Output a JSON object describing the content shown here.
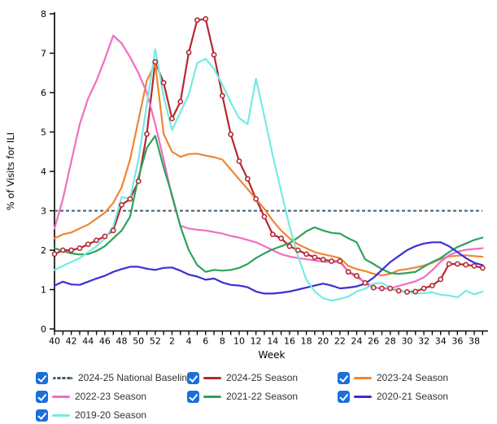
{
  "chart_data": {
    "type": "line",
    "title": "",
    "x_axis": {
      "label": "Week",
      "weeks": [
        40,
        41,
        42,
        43,
        44,
        45,
        46,
        47,
        48,
        49,
        50,
        51,
        52,
        1,
        2,
        3,
        4,
        5,
        6,
        7,
        8,
        9,
        10,
        11,
        12,
        13,
        14,
        15,
        16,
        17,
        18,
        19,
        20,
        21,
        22,
        23,
        24,
        25,
        26,
        27,
        28,
        29,
        30,
        31,
        32,
        33,
        34,
        35,
        36,
        37,
        38,
        39
      ],
      "labeled_ticks": [
        40,
        42,
        44,
        46,
        48,
        50,
        52,
        2,
        4,
        6,
        8,
        10,
        12,
        14,
        16,
        18,
        20,
        22,
        24,
        26,
        28,
        30,
        32,
        34,
        36,
        38
      ]
    },
    "y_axis": {
      "label": "% of Visits for ILI",
      "min": 0,
      "max": 8,
      "ticks": [
        0,
        1,
        2,
        3,
        4,
        5,
        6,
        7,
        8
      ]
    },
    "baseline": {
      "name": "2024-25 National Baseline",
      "value": 3.0,
      "color": "#3E5A6E",
      "style": "dashed"
    },
    "series": [
      {
        "name": "2024-25 Season",
        "color": "#B52830",
        "marker": true,
        "values": [
          1.9,
          2.0,
          2.0,
          2.05,
          2.15,
          2.25,
          2.35,
          2.5,
          3.15,
          3.3,
          3.75,
          4.95,
          6.78,
          6.25,
          5.34,
          5.77,
          7.02,
          7.84,
          7.87,
          6.96,
          5.92,
          4.94,
          4.26,
          3.81,
          3.3,
          2.85,
          2.4,
          2.3,
          2.1,
          2.0,
          1.9,
          1.82,
          1.76,
          1.72,
          1.72,
          1.45,
          1.35,
          1.17,
          1.05,
          1.03,
          1.03,
          0.97,
          0.94,
          0.95,
          1.03,
          1.1,
          1.26,
          1.65,
          1.65,
          1.63,
          1.6,
          1.55
        ]
      },
      {
        "name": "2023-24 Season",
        "color": "#EF8633",
        "marker": false,
        "values": [
          2.3,
          2.4,
          2.45,
          2.55,
          2.65,
          2.8,
          2.95,
          3.2,
          3.6,
          4.3,
          5.3,
          6.3,
          6.74,
          4.95,
          4.5,
          4.37,
          4.44,
          4.45,
          4.4,
          4.36,
          4.3,
          4.05,
          3.8,
          3.55,
          3.3,
          3.05,
          2.75,
          2.5,
          2.3,
          2.15,
          2.05,
          1.95,
          1.9,
          1.85,
          1.8,
          1.6,
          1.52,
          1.47,
          1.4,
          1.36,
          1.4,
          1.49,
          1.52,
          1.56,
          1.61,
          1.68,
          1.78,
          1.84,
          1.86,
          1.87,
          1.85,
          1.83
        ]
      },
      {
        "name": "2022-23 Season",
        "color": "#F06EC2",
        "marker": false,
        "values": [
          2.55,
          3.3,
          4.25,
          5.2,
          5.85,
          6.3,
          6.85,
          7.45,
          7.25,
          6.9,
          6.5,
          6.0,
          5.2,
          4.3,
          3.35,
          2.62,
          2.55,
          2.52,
          2.5,
          2.46,
          2.42,
          2.36,
          2.32,
          2.26,
          2.2,
          2.1,
          2.0,
          1.9,
          1.84,
          1.8,
          1.77,
          1.74,
          1.71,
          1.7,
          1.7,
          1.45,
          1.3,
          1.2,
          1.06,
          1.02,
          1.03,
          1.09,
          1.15,
          1.21,
          1.31,
          1.49,
          1.71,
          1.87,
          1.96,
          2.01,
          2.03,
          2.05
        ]
      },
      {
        "name": "2021-22 Season",
        "color": "#2EA25C",
        "marker": false,
        "values": [
          2.05,
          1.98,
          1.92,
          1.89,
          1.9,
          1.98,
          2.1,
          2.3,
          2.5,
          2.85,
          3.85,
          4.6,
          4.9,
          4.1,
          3.4,
          2.6,
          2.0,
          1.62,
          1.45,
          1.5,
          1.48,
          1.5,
          1.55,
          1.65,
          1.8,
          1.92,
          2.02,
          2.1,
          2.18,
          2.32,
          2.48,
          2.58,
          2.5,
          2.44,
          2.42,
          2.3,
          2.2,
          1.77,
          1.65,
          1.52,
          1.42,
          1.4,
          1.42,
          1.45,
          1.58,
          1.7,
          1.8,
          1.95,
          2.08,
          2.17,
          2.26,
          2.32
        ]
      },
      {
        "name": "2020-21 Season",
        "color": "#3A30D2",
        "marker": false,
        "values": [
          1.1,
          1.2,
          1.13,
          1.12,
          1.2,
          1.28,
          1.35,
          1.45,
          1.52,
          1.58,
          1.58,
          1.53,
          1.5,
          1.55,
          1.56,
          1.48,
          1.38,
          1.33,
          1.25,
          1.28,
          1.18,
          1.12,
          1.1,
          1.06,
          0.95,
          0.9,
          0.9,
          0.92,
          0.95,
          1.0,
          1.05,
          1.1,
          1.15,
          1.1,
          1.03,
          1.05,
          1.08,
          1.15,
          1.3,
          1.5,
          1.7,
          1.85,
          2.0,
          2.1,
          2.17,
          2.2,
          2.2,
          2.1,
          1.95,
          1.8,
          1.68,
          1.62
        ]
      },
      {
        "name": "2019-20 Season",
        "color": "#74EAE4",
        "marker": false,
        "values": [
          1.5,
          1.6,
          1.7,
          1.8,
          1.95,
          2.1,
          2.3,
          2.6,
          3.35,
          3.3,
          4.3,
          5.7,
          7.1,
          5.9,
          5.05,
          5.5,
          5.95,
          6.75,
          6.86,
          6.6,
          6.2,
          5.75,
          5.35,
          5.2,
          6.35,
          5.4,
          4.4,
          3.5,
          2.6,
          1.85,
          1.25,
          0.95,
          0.78,
          0.72,
          0.76,
          0.82,
          0.95,
          1.02,
          1.15,
          1.17,
          1.05,
          0.98,
          0.94,
          0.9,
          0.91,
          0.93,
          0.87,
          0.85,
          0.8,
          0.97,
          0.88,
          0.95
        ]
      }
    ],
    "ylim": [
      0,
      8
    ],
    "grid": false,
    "legend_position": "bottom"
  },
  "legend": {
    "items": [
      {
        "label": "2024-25 National Baseline",
        "style": "dashed",
        "color": "#3E5A6E",
        "checked": true
      },
      {
        "label": "2024-25 Season",
        "style": "solid",
        "color": "#B52830",
        "checked": true
      },
      {
        "label": "2023-24 Season",
        "style": "solid",
        "color": "#EF8633",
        "checked": true
      },
      {
        "label": "2022-23 Season",
        "style": "solid",
        "color": "#F06EC2",
        "checked": true
      },
      {
        "label": "2021-22 Season",
        "style": "solid",
        "color": "#2EA25C",
        "checked": true
      },
      {
        "label": "2020-21 Season",
        "style": "solid",
        "color": "#3A30D2",
        "checked": true
      },
      {
        "label": "2019-20 Season",
        "style": "solid",
        "color": "#74EAE4",
        "checked": true
      }
    ]
  }
}
